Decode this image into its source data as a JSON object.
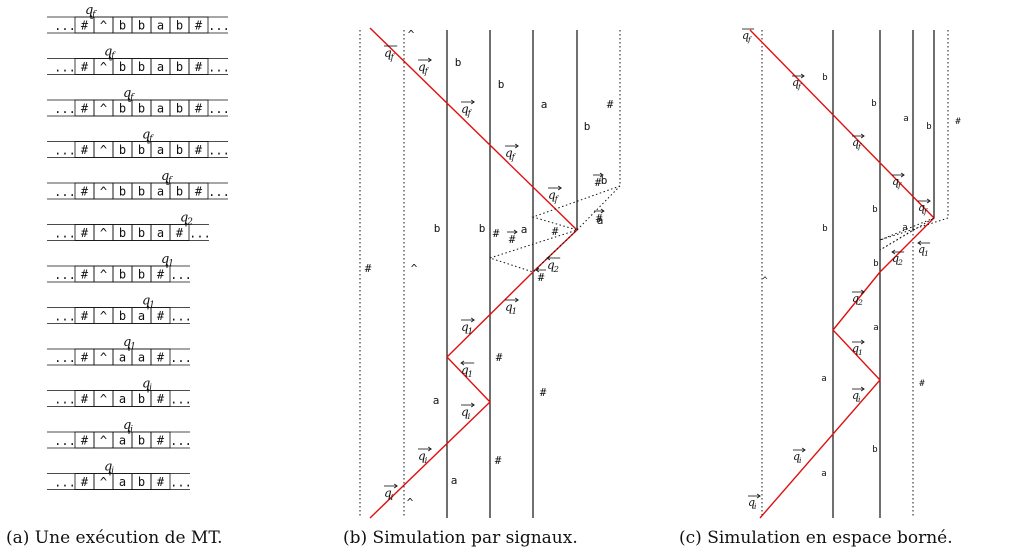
{
  "captions": {
    "a": "(a) Une exécution de MT.",
    "b": "(b) Simulation par signaux.",
    "c": "(c) Simulation en espace borné."
  },
  "colors": {
    "signal": "#e01010",
    "line": "#111111"
  },
  "tape_run": {
    "rows": [
      {
        "cells": [
          "#",
          "^",
          "b",
          "b",
          "a",
          "b",
          "#"
        ],
        "head": 1,
        "state": "q_f"
      },
      {
        "cells": [
          "#",
          "^",
          "b",
          "b",
          "a",
          "b",
          "#"
        ],
        "head": 2,
        "state": "q_f"
      },
      {
        "cells": [
          "#",
          "^",
          "b",
          "b",
          "a",
          "b",
          "#"
        ],
        "head": 3,
        "state": "q_f"
      },
      {
        "cells": [
          "#",
          "^",
          "b",
          "b",
          "a",
          "b",
          "#"
        ],
        "head": 4,
        "state": "q_f"
      },
      {
        "cells": [
          "#",
          "^",
          "b",
          "b",
          "a",
          "b",
          "#"
        ],
        "head": 5,
        "state": "q_f"
      },
      {
        "cells": [
          "#",
          "^",
          "b",
          "b",
          "a",
          "#"
        ],
        "head": 6,
        "state": "q_2"
      },
      {
        "cells": [
          "#",
          "^",
          "b",
          "b",
          "#"
        ],
        "head": 5,
        "state": "q_1"
      },
      {
        "cells": [
          "#",
          "^",
          "b",
          "a",
          "#"
        ],
        "head": 4,
        "state": "q_1"
      },
      {
        "cells": [
          "#",
          "^",
          "a",
          "a",
          "#"
        ],
        "head": 3,
        "state": "q_1"
      },
      {
        "cells": [
          "#",
          "^",
          "a",
          "b",
          "#"
        ],
        "head": 4,
        "state": "q_i"
      },
      {
        "cells": [
          "#",
          "^",
          "a",
          "b",
          "#"
        ],
        "head": 3,
        "state": "q_i"
      },
      {
        "cells": [
          "#",
          "^",
          "a",
          "b",
          "#"
        ],
        "head": 2,
        "state": "q_i"
      }
    ]
  },
  "signals_b": {
    "symbols": [
      {
        "t": "^"
      },
      {
        "t": "b"
      },
      {
        "t": "b"
      },
      {
        "t": "a"
      },
      {
        "t": "#"
      },
      {
        "t": "b"
      },
      {
        "t": "#"
      },
      {
        "t": "#"
      },
      {
        "t": "b"
      },
      {
        "t": "b"
      },
      {
        "t": "a"
      },
      {
        "t": "#"
      },
      {
        "t": "#"
      },
      {
        "t": "#"
      },
      {
        "t": "^"
      },
      {
        "t": "a"
      },
      {
        "t": "a"
      },
      {
        "t": "#"
      },
      {
        "t": "b"
      },
      {
        "t": "a"
      },
      {
        "t": "^"
      }
    ],
    "states": [
      {
        "t": "q_f",
        "arrow": "up"
      },
      {
        "t": "q_f",
        "arrow": "right"
      },
      {
        "t": "q_f",
        "arrow": "right"
      },
      {
        "t": "q_f",
        "arrow": "right"
      },
      {
        "t": "q_f",
        "arrow": "right"
      },
      {
        "t": "q_2",
        "arrow": "left"
      },
      {
        "t": "q_1",
        "arrow": "right"
      },
      {
        "t": "q_1",
        "arrow": "right"
      },
      {
        "t": "q_1",
        "arrow": "left"
      },
      {
        "t": "q_i",
        "arrow": "right"
      },
      {
        "t": "q_i",
        "arrow": "right"
      },
      {
        "t": "q_i",
        "arrow": "right"
      }
    ],
    "marks": [
      {
        "t": "#",
        "arrow": "right"
      },
      {
        "t": "#",
        "arrow": "right"
      },
      {
        "t": "#",
        "arrow": "right"
      },
      {
        "t": "#",
        "arrow": "left"
      }
    ]
  },
  "signals_c": {
    "symbols": [
      {
        "t": "b"
      },
      {
        "t": "b"
      },
      {
        "t": "a"
      },
      {
        "t": "b"
      },
      {
        "t": "#"
      },
      {
        "t": "b"
      },
      {
        "t": "b"
      },
      {
        "t": "a"
      },
      {
        "t": "b"
      },
      {
        "t": "a"
      },
      {
        "t": "^"
      },
      {
        "t": "a"
      },
      {
        "t": "#"
      },
      {
        "t": "b"
      },
      {
        "t": "a"
      }
    ],
    "states": [
      {
        "t": "q_f",
        "arrow": "up"
      },
      {
        "t": "q_f",
        "arrow": "right"
      },
      {
        "t": "q_f",
        "arrow": "right"
      },
      {
        "t": "q_f",
        "arrow": "right"
      },
      {
        "t": "q_f",
        "arrow": "right"
      },
      {
        "t": "q_2",
        "arrow": "left"
      },
      {
        "t": "q_1",
        "arrow": "left"
      },
      {
        "t": "q_2",
        "arrow": "right"
      },
      {
        "t": "q_1",
        "arrow": "right"
      },
      {
        "t": "q_i",
        "arrow": "right"
      },
      {
        "t": "q_i",
        "arrow": "right"
      },
      {
        "t": "q_i",
        "arrow": "right"
      }
    ]
  }
}
